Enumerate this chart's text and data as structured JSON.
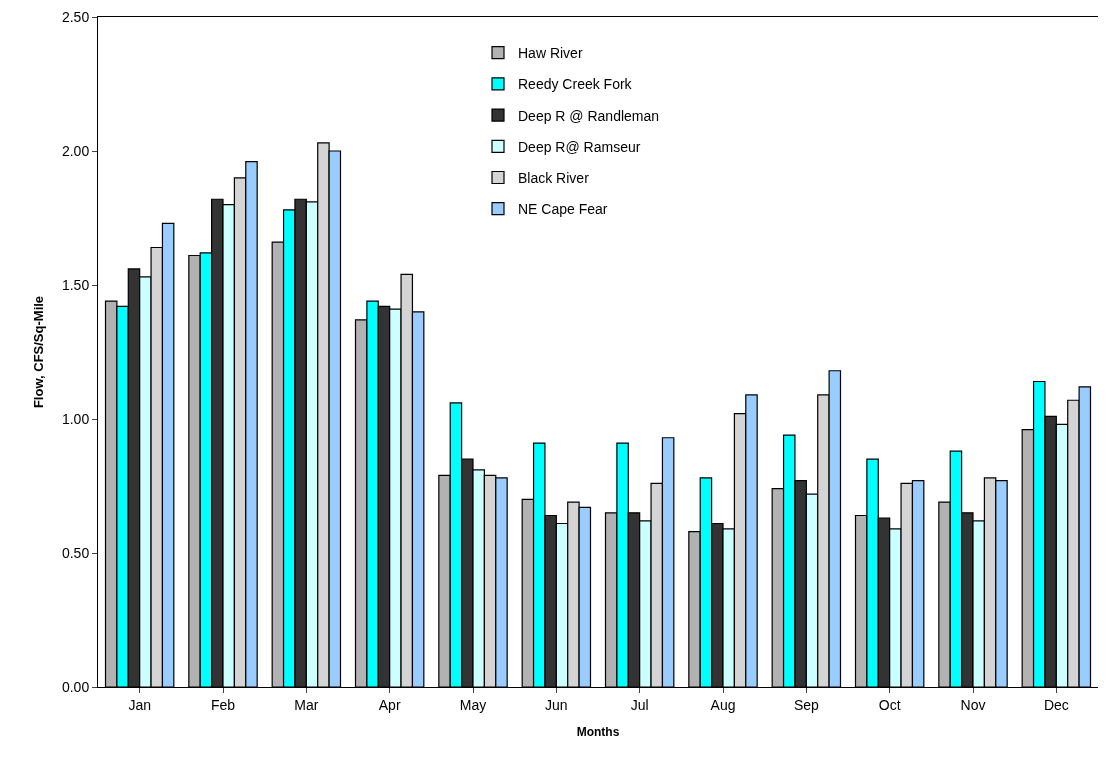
{
  "chart_data": {
    "type": "bar",
    "xlabel": "Months",
    "ylabel": "Flow, CFS/Sq-Mile",
    "categories": [
      "Jan",
      "Feb",
      "Mar",
      "Apr",
      "May",
      "Jun",
      "Jul",
      "Aug",
      "Sep",
      "Oct",
      "Nov",
      "Dec"
    ],
    "series": [
      {
        "name": "Haw River",
        "color": "#b2b2b2",
        "values": [
          1.44,
          1.61,
          1.66,
          1.37,
          0.79,
          0.7,
          0.65,
          0.58,
          0.74,
          0.64,
          0.69,
          0.96
        ]
      },
      {
        "name": "Reedy Creek Fork",
        "color": "#00ffff",
        "values": [
          1.42,
          1.62,
          1.78,
          1.44,
          1.06,
          0.91,
          0.91,
          0.78,
          0.94,
          0.85,
          0.88,
          1.14
        ]
      },
      {
        "name": "Deep R @ Randleman",
        "color": "#333333",
        "values": [
          1.56,
          1.82,
          1.82,
          1.42,
          0.85,
          0.64,
          0.65,
          0.61,
          0.77,
          0.63,
          0.65,
          1.01
        ]
      },
      {
        "name": "Deep R@ Ramseur",
        "color": "#ccffff",
        "values": [
          1.53,
          1.8,
          1.81,
          1.41,
          0.81,
          0.61,
          0.62,
          0.59,
          0.72,
          0.59,
          0.62,
          0.98
        ]
      },
      {
        "name": "Black River",
        "color": "#d4d4d4",
        "values": [
          1.64,
          1.9,
          2.03,
          1.54,
          0.79,
          0.69,
          0.76,
          1.02,
          1.09,
          0.76,
          0.78,
          1.07
        ]
      },
      {
        "name": "NE Cape Fear",
        "color": "#99ccff",
        "values": [
          1.73,
          1.96,
          2.0,
          1.4,
          0.78,
          0.67,
          0.93,
          1.09,
          1.18,
          0.77,
          0.77,
          1.12
        ]
      }
    ],
    "ylim": [
      0,
      2.5
    ],
    "yticks": [
      {
        "value": 0,
        "label": "0.00"
      },
      {
        "value": 0.5,
        "label": "0.50"
      },
      {
        "value": 1.0,
        "label": "1.00"
      },
      {
        "value": 1.5,
        "label": "1.50"
      },
      {
        "value": 2.0,
        "label": "2.00"
      },
      {
        "value": 2.5,
        "label": "2.50"
      }
    ],
    "grid": false,
    "legend": "top"
  }
}
